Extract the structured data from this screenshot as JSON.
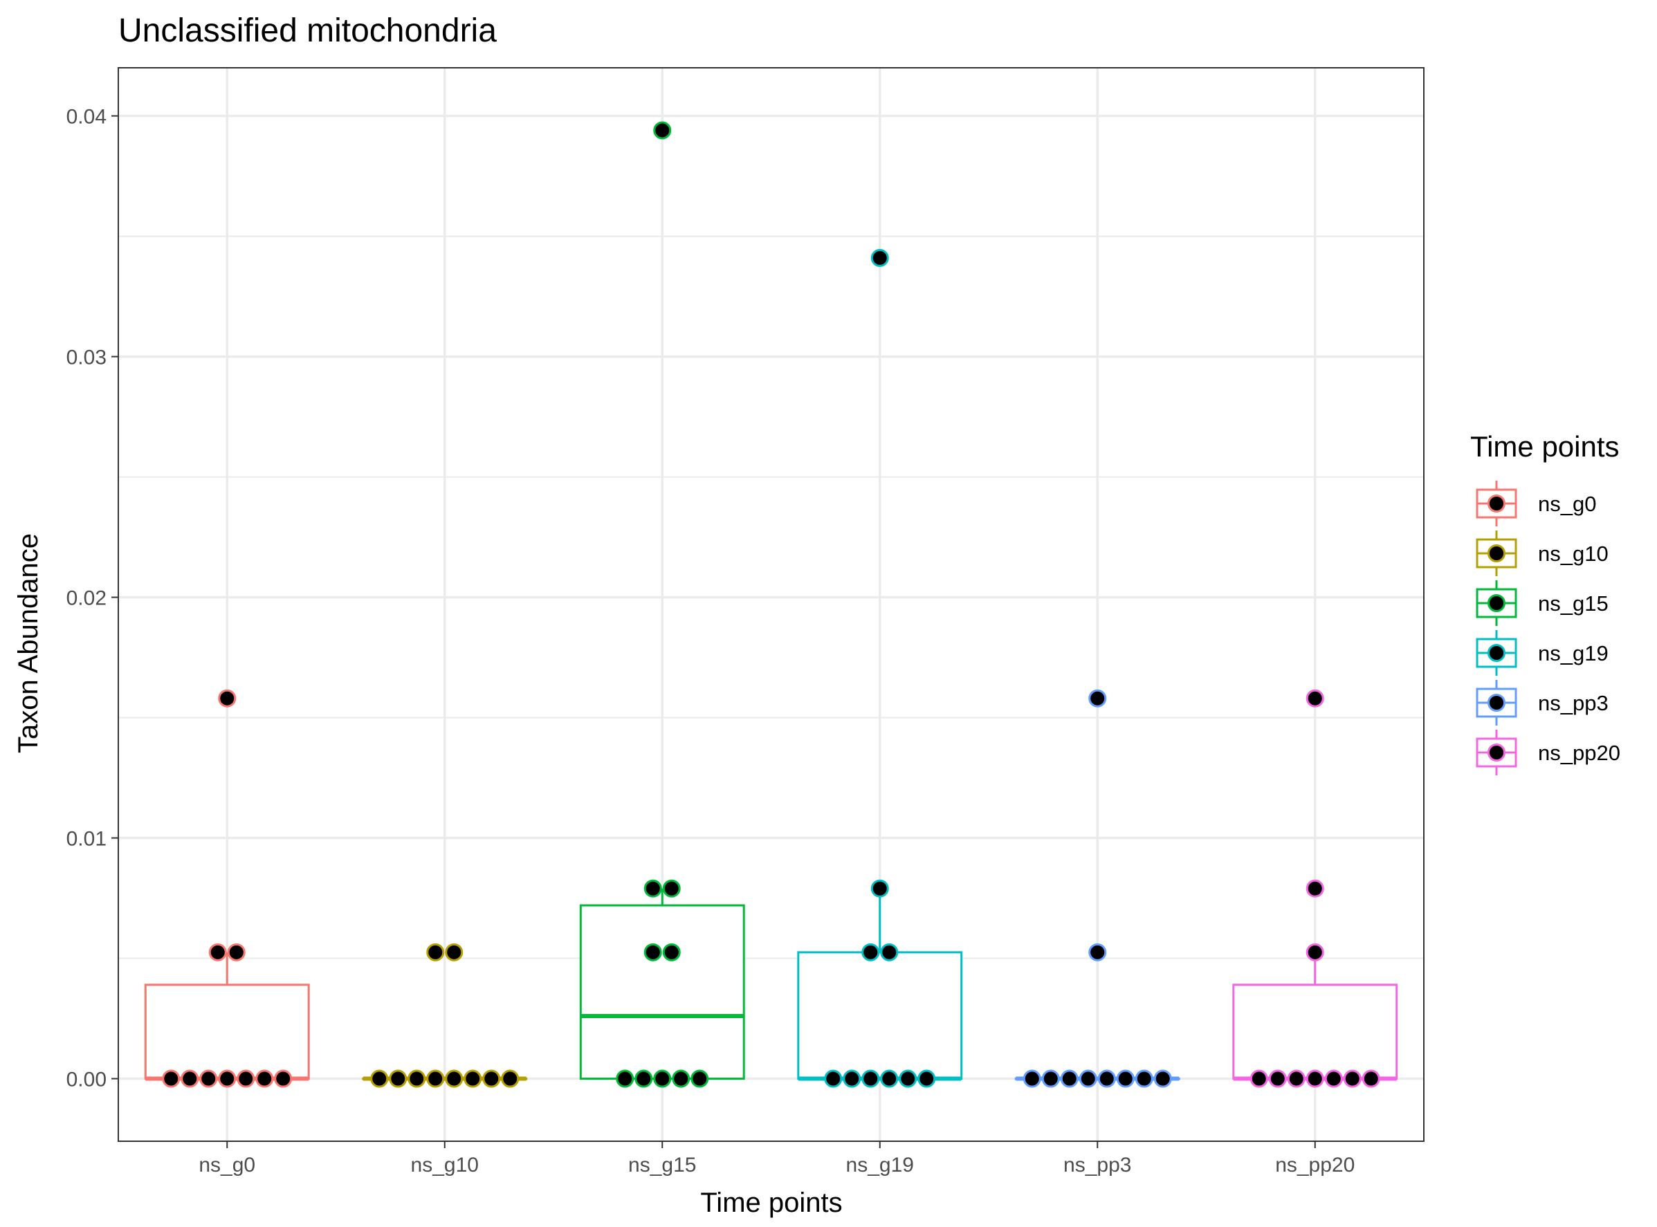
{
  "chart_data": {
    "type": "box",
    "title": "Unclassified mitochondria",
    "xlabel": "Time points",
    "ylabel": "Taxon Abundance",
    "ylim": [
      -0.0026,
      0.042
    ],
    "yticks": [
      0,
      0.01,
      0.02,
      0.03,
      0.04
    ],
    "ytick_labels": [
      "0.00",
      "0.01",
      "0.02",
      "0.03",
      "0.04"
    ],
    "grid": true,
    "legend": {
      "title": "Time points",
      "placement": "right"
    },
    "categories": [
      "ns_g0",
      "ns_g10",
      "ns_g15",
      "ns_g19",
      "ns_pp3",
      "ns_pp20"
    ],
    "series": [
      {
        "name": "ns_g0",
        "color": "#F8766D",
        "box": {
          "q1": 0,
          "median": 0,
          "q3": 0.0039,
          "whisker_low": 0,
          "whisker_high": 0.00525
        },
        "points": [
          0,
          0,
          0,
          0,
          0,
          0,
          0,
          0.00525,
          0.00525,
          0.0158
        ]
      },
      {
        "name": "ns_g10",
        "color": "#B79F00",
        "box": {
          "q1": 0,
          "median": 0,
          "q3": 0,
          "whisker_low": 0,
          "whisker_high": 0
        },
        "points": [
          0,
          0,
          0,
          0,
          0,
          0,
          0,
          0,
          0.00525,
          0.00525
        ]
      },
      {
        "name": "ns_g15",
        "color": "#00BA38",
        "box": {
          "q1": 0,
          "median": 0.0026,
          "q3": 0.0072,
          "whisker_low": 0,
          "whisker_high": 0.0079
        },
        "points": [
          0,
          0,
          0,
          0,
          0,
          0.00525,
          0.00525,
          0.0079,
          0.0079,
          0.0394
        ]
      },
      {
        "name": "ns_g19",
        "color": "#00BFC4",
        "box": {
          "q1": 0,
          "median": 0,
          "q3": 0.00525,
          "whisker_low": 0,
          "whisker_high": 0.0079
        },
        "points": [
          0,
          0,
          0,
          0,
          0,
          0,
          0.00525,
          0.00525,
          0.0079,
          0.0341
        ]
      },
      {
        "name": "ns_pp3",
        "color": "#619CFF",
        "box": {
          "q1": 0,
          "median": 0,
          "q3": 0,
          "whisker_low": 0,
          "whisker_high": 0
        },
        "points": [
          0,
          0,
          0,
          0,
          0,
          0,
          0,
          0,
          0.00525,
          0.0158
        ]
      },
      {
        "name": "ns_pp20",
        "color": "#F564E3",
        "box": {
          "q1": 0,
          "median": 0,
          "q3": 0.0039,
          "whisker_low": 0,
          "whisker_high": 0.00525
        },
        "points": [
          0,
          0,
          0,
          0,
          0,
          0,
          0,
          0.00525,
          0.0079,
          0.0158
        ]
      }
    ]
  }
}
